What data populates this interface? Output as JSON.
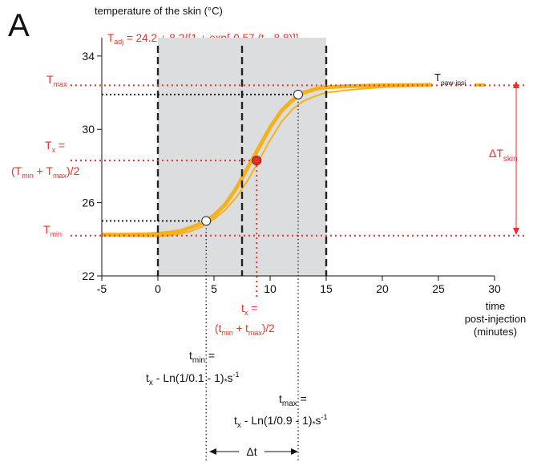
{
  "panel_label": "A",
  "formula": {
    "lhs_base": "T",
    "lhs_sub": "adj",
    "rhs": " = 24.2 + 8.2/{1 + exp[-0.57",
    "star": "*",
    "rhs_end": "(t - 8.8)]}"
  },
  "side_labels": {
    "tmax_base": "T",
    "tmax_sub": "max",
    "tmin_base": "T",
    "tmin_sub": "min",
    "tx_base": "T",
    "tx_sub": "x",
    "tx_eq": " =",
    "tx_def_open": "(T",
    "tx_def_min": "min",
    "tx_def_plus": " + T",
    "tx_def_max": "max",
    "tx_def_close": ")/2",
    "paw_base": "T",
    "paw_sub": "paw-ipsi",
    "delta_skin_base": "ΔT",
    "delta_skin_sub": "skin"
  },
  "bottom_annotations": {
    "tx_base": "t",
    "tx_sub": "x",
    "tx_eq": " =",
    "tx_def_open": "(t",
    "tx_def_min": "min",
    "tx_def_plus": " + t",
    "tx_def_max": "max",
    "tx_def_close": ")/2",
    "tmin_base": "t",
    "tmin_sub": "min",
    "tmin_eq": " =",
    "tmin_formula": "t",
    "tmin_formula_sub": "x",
    "tmin_formula_rest": " - Ln(1/0.1 - 1)",
    "tmin_star": "*",
    "tmin_s": "s",
    "tmin_exp": "-1",
    "tmax_base": "t",
    "tmax_sub": "max",
    "tmax_eq": " =",
    "tmax_formula": "t",
    "tmax_formula_sub": "x",
    "tmax_formula_rest": " - Ln(1/0.9 - 1)",
    "tmax_star": "*",
    "tmax_s": "s",
    "tmax_exp": "-1",
    "delta_t": "Δt"
  },
  "chart_data": {
    "type": "line",
    "ylabel": "temperature of the skin (°C)",
    "xlabel": [
      "time",
      "post-injection",
      "(minutes)"
    ],
    "xlim": [
      -5,
      30
    ],
    "ylim": [
      22,
      35
    ],
    "xticks": [
      -5,
      0,
      5,
      10,
      15,
      20,
      25,
      30
    ],
    "yticks": [
      22,
      26,
      30,
      34
    ],
    "shaded_interval": [
      0,
      15
    ],
    "dashed_verticals": [
      0,
      7.5,
      15
    ],
    "model": {
      "base": 24.2,
      "amplitude": 8.2,
      "slope": 0.57,
      "midpoint": 8.8
    },
    "markers": {
      "t_min": {
        "x": 4.3,
        "y": 25.0
      },
      "t_x": {
        "x": 8.8,
        "y": 28.3
      },
      "t_max": {
        "x": 12.5,
        "y": 31.9
      }
    },
    "reference_levels": {
      "T_max": 32.4,
      "T_x": 28.3,
      "T_min": 24.2
    },
    "series": [
      {
        "values": [
          [
            -5,
            24.25
          ],
          [
            -3,
            24.25
          ],
          [
            -1,
            24.27
          ],
          [
            0,
            24.3
          ],
          [
            1,
            24.35
          ],
          [
            2,
            24.45
          ],
          [
            3,
            24.65
          ],
          [
            4,
            24.9
          ],
          [
            5,
            25.3
          ],
          [
            6,
            25.9
          ],
          [
            7,
            26.8
          ],
          [
            8,
            27.9
          ],
          [
            9,
            29.0
          ],
          [
            10,
            30.1
          ],
          [
            11,
            31.0
          ],
          [
            12,
            31.6
          ],
          [
            13,
            32.0
          ],
          [
            14,
            32.2
          ],
          [
            15,
            32.3
          ],
          [
            17,
            32.35
          ],
          [
            20,
            32.4
          ],
          [
            24.3,
            32.42
          ]
        ]
      },
      {
        "values": [
          [
            -5,
            24.2
          ],
          [
            -3,
            24.18
          ],
          [
            0,
            24.15
          ],
          [
            1,
            24.2
          ],
          [
            2,
            24.3
          ],
          [
            3,
            24.45
          ],
          [
            4,
            24.7
          ],
          [
            5,
            25.1
          ],
          [
            6,
            25.6
          ],
          [
            7,
            26.3
          ],
          [
            8,
            27.2
          ],
          [
            9,
            28.3
          ],
          [
            10,
            29.4
          ],
          [
            11,
            30.4
          ],
          [
            12,
            31.1
          ],
          [
            13,
            31.55
          ],
          [
            14,
            31.8
          ],
          [
            15,
            32.0
          ],
          [
            17,
            32.15
          ],
          [
            20,
            32.3
          ],
          [
            24.3,
            32.4
          ]
        ]
      }
    ]
  }
}
